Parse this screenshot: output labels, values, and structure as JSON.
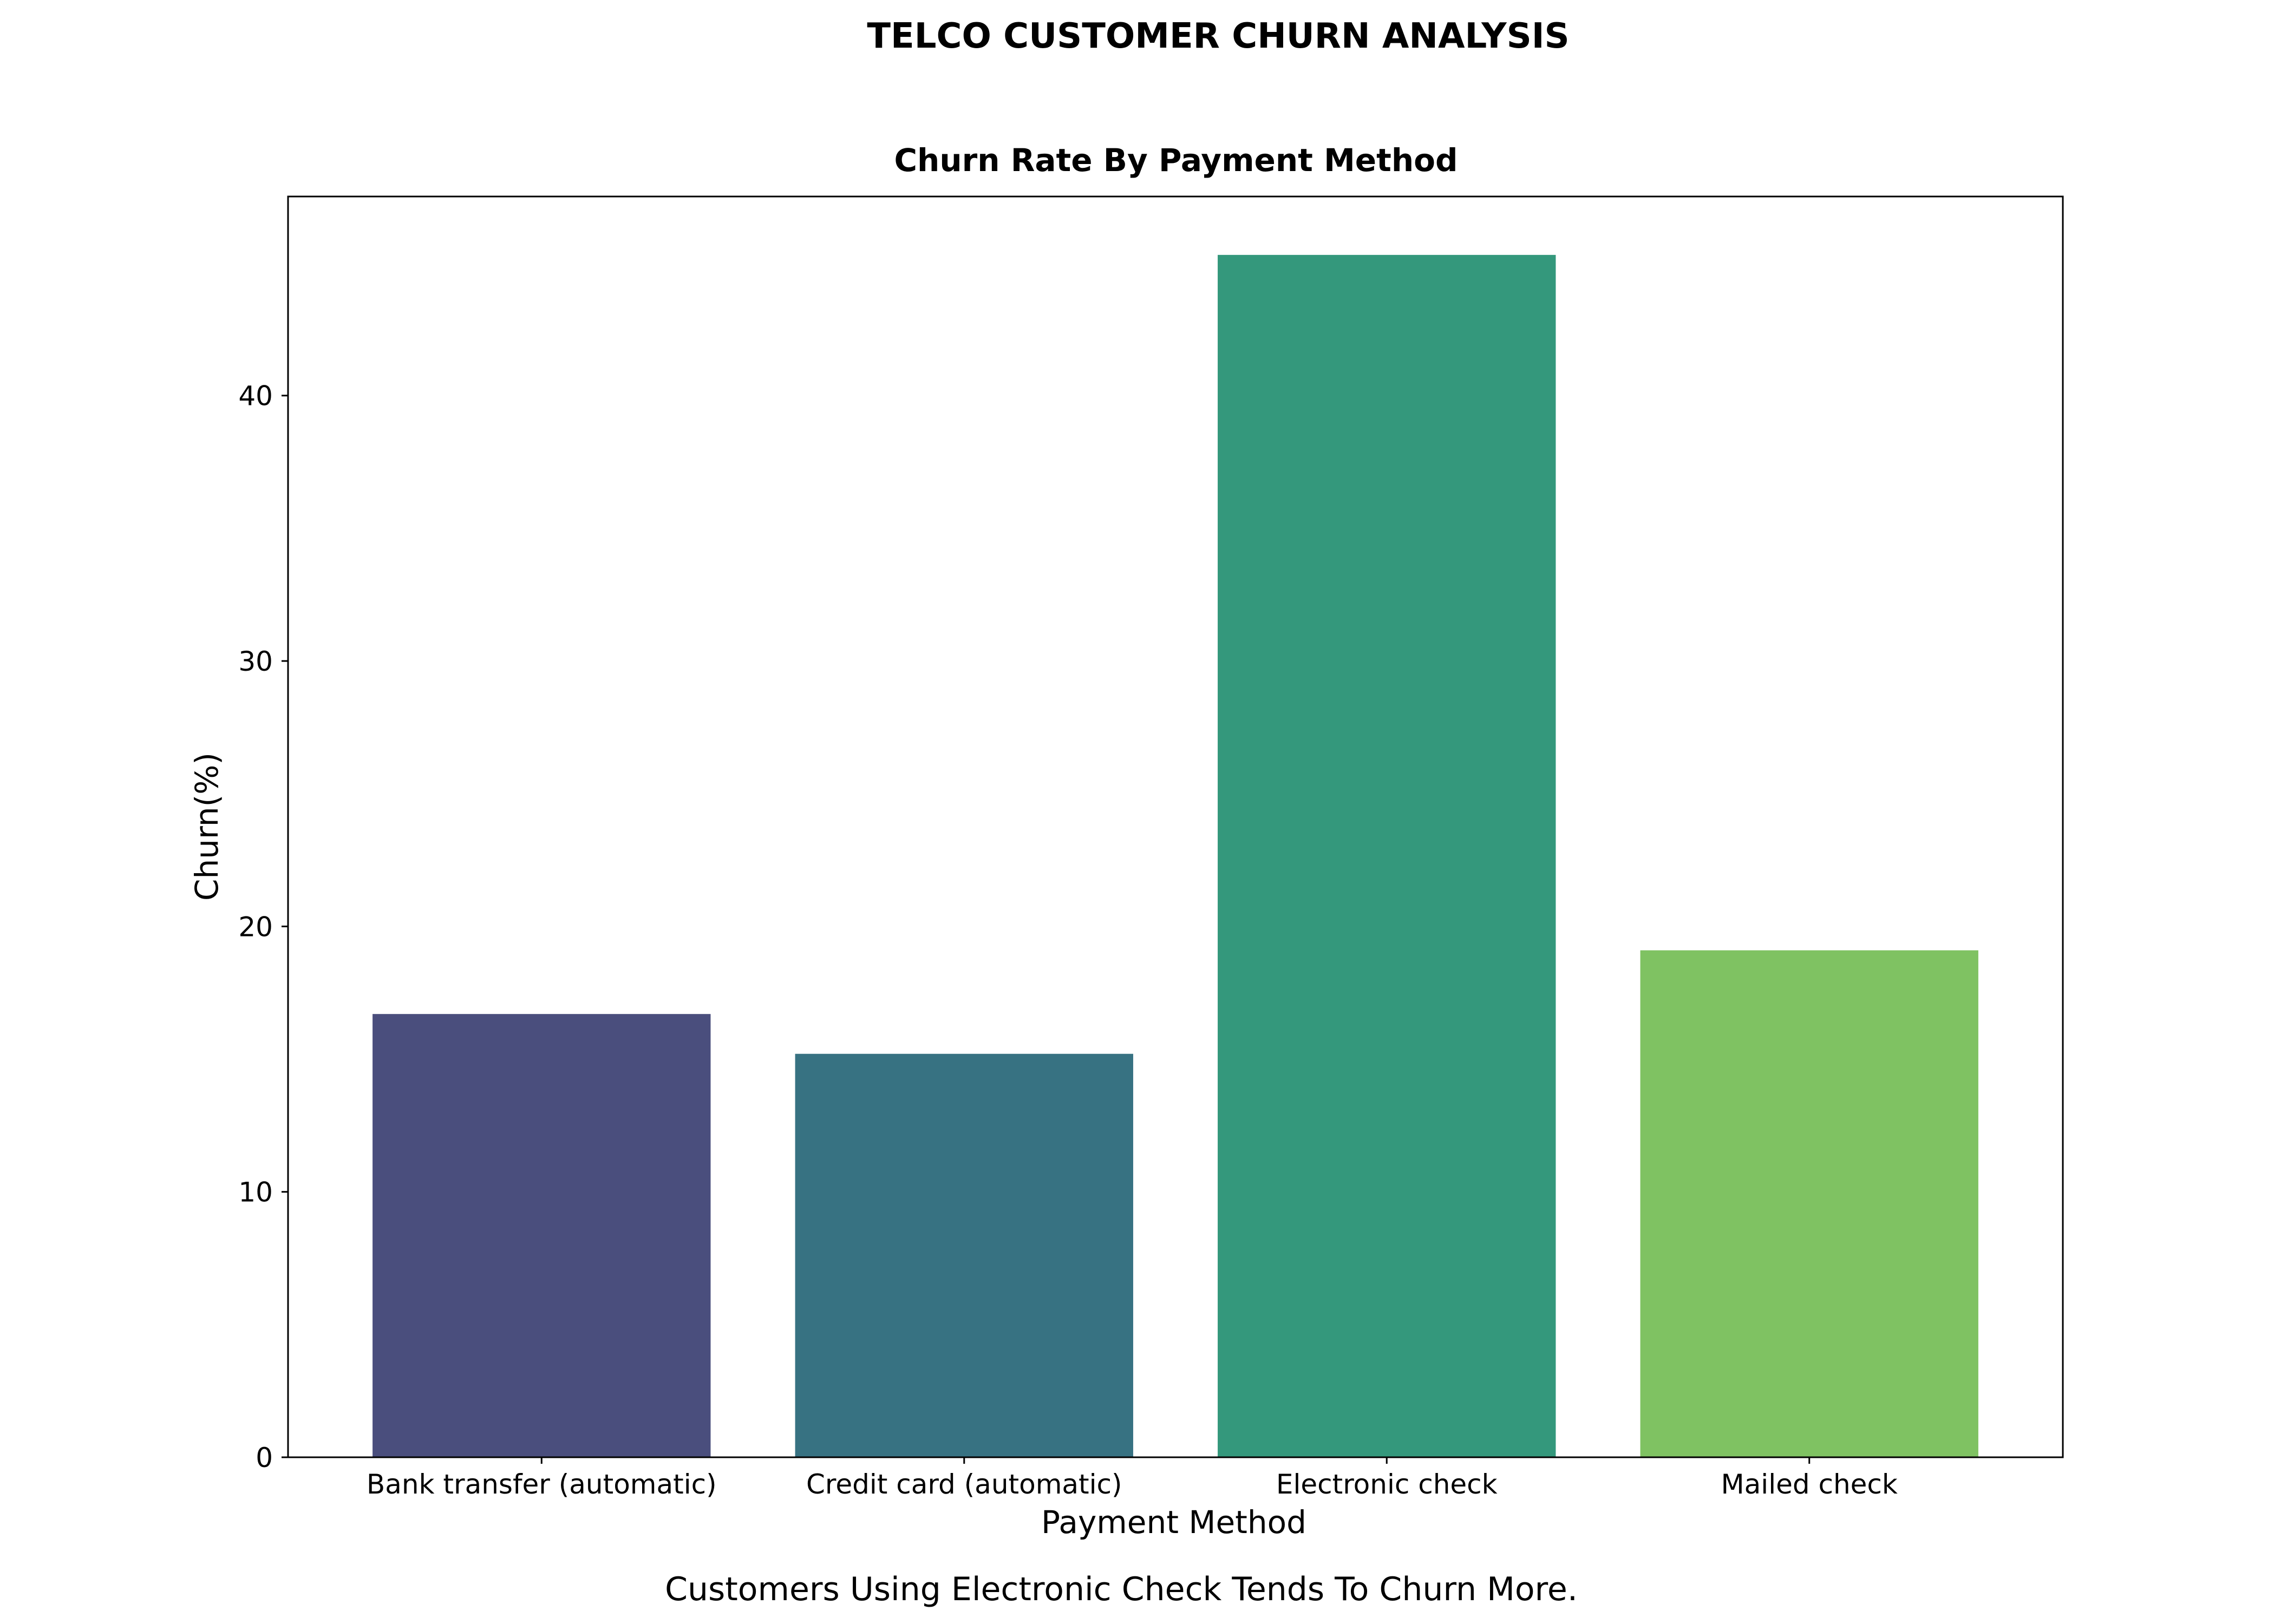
{
  "figure": {
    "suptitle": "TELCO CUSTOMER CHURN ANALYSIS",
    "caption": "Customers Using Electronic Check Tends To Churn More."
  },
  "chart_data": {
    "type": "bar",
    "title": "Churn Rate By Payment Method",
    "xlabel": "Payment Method",
    "ylabel": "Churn(%)",
    "categories": [
      "Bank transfer (automatic)",
      "Credit card (automatic)",
      "Electronic check",
      "Mailed check"
    ],
    "values": [
      16.7,
      15.2,
      45.3,
      19.1
    ],
    "colors": [
      "#4a4e7d",
      "#377282",
      "#34987c",
      "#7fc262"
    ],
    "ylim": [
      0,
      47.5
    ],
    "yticks": [
      0,
      10,
      20,
      30,
      40
    ],
    "grid": false,
    "legend": "none"
  }
}
